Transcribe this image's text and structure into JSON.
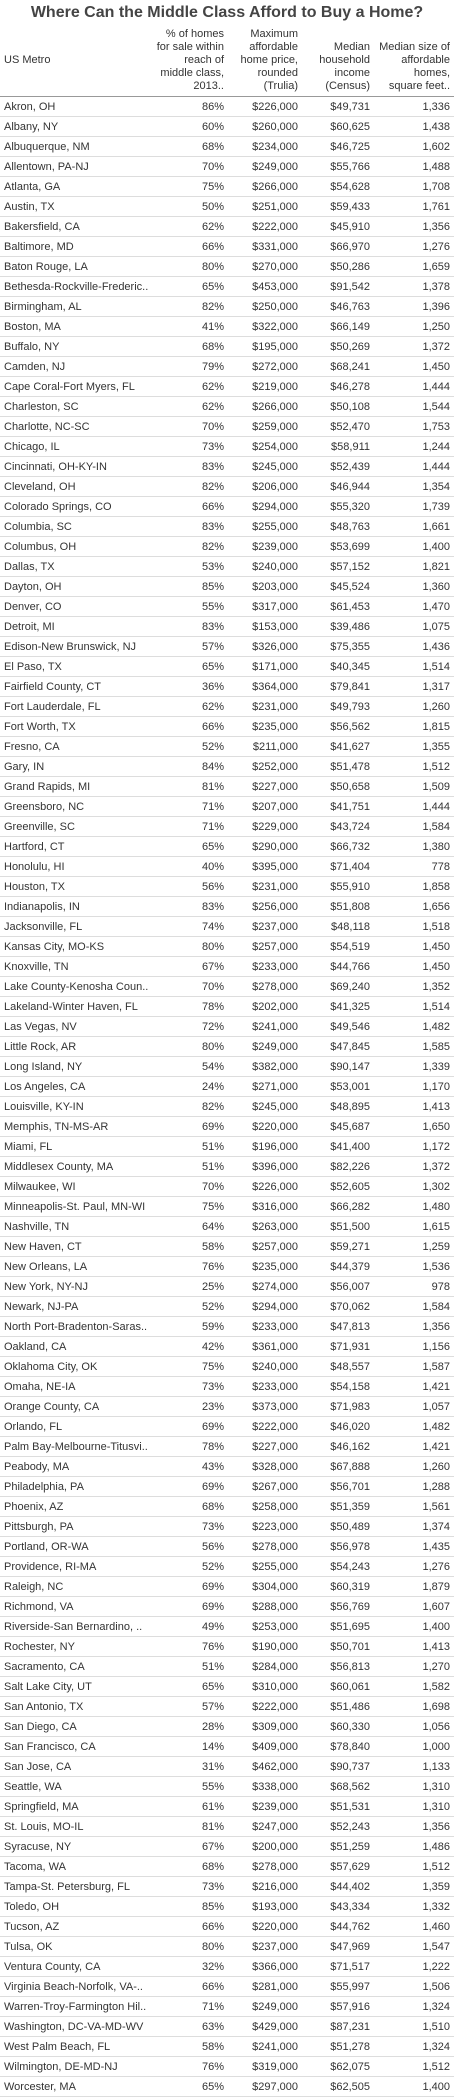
{
  "header": {
    "title": "Where Can the Middle Class Afford to Buy a Home?"
  },
  "table": {
    "columns": [
      "US Metro",
      "% of homes for sale within reach of middle class, 2013..",
      "Maximum affordable home price, rounded (Trulia)",
      "Median household income (Census)",
      "Median size of affordable homes, square feet.."
    ],
    "rows": [
      [
        "Akron, OH",
        "86%",
        "$226,000",
        "$49,731",
        "1,336"
      ],
      [
        "Albany, NY",
        "60%",
        "$260,000",
        "$60,625",
        "1,438"
      ],
      [
        "Albuquerque, NM",
        "68%",
        "$234,000",
        "$46,725",
        "1,602"
      ],
      [
        "Allentown, PA-NJ",
        "70%",
        "$249,000",
        "$55,766",
        "1,488"
      ],
      [
        "Atlanta, GA",
        "75%",
        "$266,000",
        "$54,628",
        "1,708"
      ],
      [
        "Austin, TX",
        "50%",
        "$251,000",
        "$59,433",
        "1,761"
      ],
      [
        "Bakersfield, CA",
        "62%",
        "$222,000",
        "$45,910",
        "1,356"
      ],
      [
        "Baltimore, MD",
        "66%",
        "$331,000",
        "$66,970",
        "1,276"
      ],
      [
        "Baton Rouge, LA",
        "80%",
        "$270,000",
        "$50,286",
        "1,659"
      ],
      [
        "Bethesda-Rockville-Frederic..",
        "65%",
        "$453,000",
        "$91,542",
        "1,378"
      ],
      [
        "Birmingham, AL",
        "82%",
        "$250,000",
        "$46,763",
        "1,396"
      ],
      [
        "Boston, MA",
        "41%",
        "$322,000",
        "$66,149",
        "1,250"
      ],
      [
        "Buffalo, NY",
        "68%",
        "$195,000",
        "$50,269",
        "1,372"
      ],
      [
        "Camden, NJ",
        "79%",
        "$272,000",
        "$68,241",
        "1,450"
      ],
      [
        "Cape Coral-Fort Myers, FL",
        "62%",
        "$219,000",
        "$46,278",
        "1,444"
      ],
      [
        "Charleston, SC",
        "62%",
        "$266,000",
        "$50,108",
        "1,544"
      ],
      [
        "Charlotte, NC-SC",
        "70%",
        "$259,000",
        "$52,470",
        "1,753"
      ],
      [
        "Chicago, IL",
        "73%",
        "$254,000",
        "$58,911",
        "1,244"
      ],
      [
        "Cincinnati, OH-KY-IN",
        "83%",
        "$245,000",
        "$52,439",
        "1,444"
      ],
      [
        "Cleveland, OH",
        "82%",
        "$206,000",
        "$46,944",
        "1,354"
      ],
      [
        "Colorado Springs, CO",
        "66%",
        "$294,000",
        "$55,320",
        "1,739"
      ],
      [
        "Columbia, SC",
        "83%",
        "$255,000",
        "$48,763",
        "1,661"
      ],
      [
        "Columbus, OH",
        "82%",
        "$239,000",
        "$53,699",
        "1,400"
      ],
      [
        "Dallas, TX",
        "53%",
        "$240,000",
        "$57,152",
        "1,821"
      ],
      [
        "Dayton, OH",
        "85%",
        "$203,000",
        "$45,524",
        "1,360"
      ],
      [
        "Denver, CO",
        "55%",
        "$317,000",
        "$61,453",
        "1,470"
      ],
      [
        "Detroit, MI",
        "83%",
        "$153,000",
        "$39,486",
        "1,075"
      ],
      [
        "Edison-New Brunswick, NJ",
        "57%",
        "$326,000",
        "$75,355",
        "1,436"
      ],
      [
        "El Paso, TX",
        "65%",
        "$171,000",
        "$40,345",
        "1,514"
      ],
      [
        "Fairfield County, CT",
        "36%",
        "$364,000",
        "$79,841",
        "1,317"
      ],
      [
        "Fort Lauderdale, FL",
        "62%",
        "$231,000",
        "$49,793",
        "1,260"
      ],
      [
        "Fort Worth, TX",
        "66%",
        "$235,000",
        "$56,562",
        "1,815"
      ],
      [
        "Fresno, CA",
        "52%",
        "$211,000",
        "$41,627",
        "1,355"
      ],
      [
        "Gary, IN",
        "84%",
        "$252,000",
        "$51,478",
        "1,512"
      ],
      [
        "Grand Rapids, MI",
        "81%",
        "$227,000",
        "$50,658",
        "1,509"
      ],
      [
        "Greensboro, NC",
        "71%",
        "$207,000",
        "$41,751",
        "1,444"
      ],
      [
        "Greenville, SC",
        "71%",
        "$229,000",
        "$43,724",
        "1,584"
      ],
      [
        "Hartford, CT",
        "65%",
        "$290,000",
        "$66,732",
        "1,380"
      ],
      [
        "Honolulu, HI",
        "40%",
        "$395,000",
        "$71,404",
        "778"
      ],
      [
        "Houston, TX",
        "56%",
        "$231,000",
        "$55,910",
        "1,858"
      ],
      [
        "Indianapolis, IN",
        "83%",
        "$256,000",
        "$51,808",
        "1,656"
      ],
      [
        "Jacksonville, FL",
        "74%",
        "$237,000",
        "$48,118",
        "1,518"
      ],
      [
        "Kansas City, MO-KS",
        "80%",
        "$257,000",
        "$54,519",
        "1,450"
      ],
      [
        "Knoxville, TN",
        "67%",
        "$233,000",
        "$44,766",
        "1,450"
      ],
      [
        "Lake County-Kenosha Coun..",
        "70%",
        "$278,000",
        "$69,240",
        "1,352"
      ],
      [
        "Lakeland-Winter Haven, FL",
        "78%",
        "$202,000",
        "$41,325",
        "1,514"
      ],
      [
        "Las Vegas, NV",
        "72%",
        "$241,000",
        "$49,546",
        "1,482"
      ],
      [
        "Little Rock, AR",
        "80%",
        "$249,000",
        "$47,845",
        "1,585"
      ],
      [
        "Long Island, NY",
        "54%",
        "$382,000",
        "$90,147",
        "1,339"
      ],
      [
        "Los Angeles, CA",
        "24%",
        "$271,000",
        "$53,001",
        "1,170"
      ],
      [
        "Louisville, KY-IN",
        "82%",
        "$245,000",
        "$48,895",
        "1,413"
      ],
      [
        "Memphis, TN-MS-AR",
        "69%",
        "$220,000",
        "$45,687",
        "1,650"
      ],
      [
        "Miami, FL",
        "51%",
        "$196,000",
        "$41,400",
        "1,172"
      ],
      [
        "Middlesex County, MA",
        "51%",
        "$396,000",
        "$82,226",
        "1,372"
      ],
      [
        "Milwaukee, WI",
        "70%",
        "$226,000",
        "$52,605",
        "1,302"
      ],
      [
        "Minneapolis-St. Paul, MN-WI",
        "75%",
        "$316,000",
        "$66,282",
        "1,480"
      ],
      [
        "Nashville, TN",
        "64%",
        "$263,000",
        "$51,500",
        "1,615"
      ],
      [
        "New Haven, CT",
        "58%",
        "$257,000",
        "$59,271",
        "1,259"
      ],
      [
        "New Orleans, LA",
        "76%",
        "$235,000",
        "$44,379",
        "1,536"
      ],
      [
        "New York, NY-NJ",
        "25%",
        "$274,000",
        "$56,007",
        "978"
      ],
      [
        "Newark, NJ-PA",
        "52%",
        "$294,000",
        "$70,062",
        "1,584"
      ],
      [
        "North Port-Bradenton-Saras..",
        "59%",
        "$233,000",
        "$47,813",
        "1,356"
      ],
      [
        "Oakland, CA",
        "42%",
        "$361,000",
        "$71,931",
        "1,156"
      ],
      [
        "Oklahoma City, OK",
        "75%",
        "$240,000",
        "$48,557",
        "1,587"
      ],
      [
        "Omaha, NE-IA",
        "73%",
        "$233,000",
        "$54,158",
        "1,421"
      ],
      [
        "Orange County, CA",
        "23%",
        "$373,000",
        "$71,983",
        "1,057"
      ],
      [
        "Orlando, FL",
        "69%",
        "$222,000",
        "$46,020",
        "1,482"
      ],
      [
        "Palm Bay-Melbourne-Titusvi..",
        "78%",
        "$227,000",
        "$46,162",
        "1,421"
      ],
      [
        "Peabody, MA",
        "43%",
        "$328,000",
        "$67,888",
        "1,260"
      ],
      [
        "Philadelphia, PA",
        "69%",
        "$267,000",
        "$56,701",
        "1,288"
      ],
      [
        "Phoenix, AZ",
        "68%",
        "$258,000",
        "$51,359",
        "1,561"
      ],
      [
        "Pittsburgh, PA",
        "73%",
        "$223,000",
        "$50,489",
        "1,374"
      ],
      [
        "Portland, OR-WA",
        "56%",
        "$278,000",
        "$56,978",
        "1,435"
      ],
      [
        "Providence, RI-MA",
        "52%",
        "$255,000",
        "$54,243",
        "1,276"
      ],
      [
        "Raleigh, NC",
        "69%",
        "$304,000",
        "$60,319",
        "1,879"
      ],
      [
        "Richmond, VA",
        "69%",
        "$288,000",
        "$56,769",
        "1,607"
      ],
      [
        "Riverside-San Bernardino, ..",
        "49%",
        "$253,000",
        "$51,695",
        "1,400"
      ],
      [
        "Rochester, NY",
        "76%",
        "$190,000",
        "$50,701",
        "1,413"
      ],
      [
        "Sacramento, CA",
        "51%",
        "$284,000",
        "$56,813",
        "1,270"
      ],
      [
        "Salt Lake City, UT",
        "65%",
        "$310,000",
        "$60,061",
        "1,582"
      ],
      [
        "San Antonio, TX",
        "57%",
        "$222,000",
        "$51,486",
        "1,698"
      ],
      [
        "San Diego, CA",
        "28%",
        "$309,000",
        "$60,330",
        "1,056"
      ],
      [
        "San Francisco, CA",
        "14%",
        "$409,000",
        "$78,840",
        "1,000"
      ],
      [
        "San Jose, CA",
        "31%",
        "$462,000",
        "$90,737",
        "1,133"
      ],
      [
        "Seattle, WA",
        "55%",
        "$338,000",
        "$68,562",
        "1,310"
      ],
      [
        "Springfield, MA",
        "61%",
        "$239,000",
        "$51,531",
        "1,310"
      ],
      [
        "St. Louis, MO-IL",
        "81%",
        "$247,000",
        "$52,243",
        "1,356"
      ],
      [
        "Syracuse, NY",
        "67%",
        "$200,000",
        "$51,259",
        "1,486"
      ],
      [
        "Tacoma, WA",
        "68%",
        "$278,000",
        "$57,629",
        "1,512"
      ],
      [
        "Tampa-St. Petersburg, FL",
        "73%",
        "$216,000",
        "$44,402",
        "1,359"
      ],
      [
        "Toledo, OH",
        "85%",
        "$193,000",
        "$43,334",
        "1,332"
      ],
      [
        "Tucson, AZ",
        "66%",
        "$220,000",
        "$44,762",
        "1,460"
      ],
      [
        "Tulsa, OK",
        "80%",
        "$237,000",
        "$47,969",
        "1,547"
      ],
      [
        "Ventura County, CA",
        "32%",
        "$366,000",
        "$71,517",
        "1,222"
      ],
      [
        "Virginia Beach-Norfolk, VA-..",
        "66%",
        "$281,000",
        "$55,997",
        "1,506"
      ],
      [
        "Warren-Troy-Farmington Hil..",
        "71%",
        "$249,000",
        "$57,916",
        "1,324"
      ],
      [
        "Washington, DC-VA-MD-WV",
        "63%",
        "$429,000",
        "$87,231",
        "1,510"
      ],
      [
        "West Palm Beach, FL",
        "58%",
        "$241,000",
        "$51,278",
        "1,324"
      ],
      [
        "Wilmington, DE-MD-NJ",
        "76%",
        "$319,000",
        "$62,075",
        "1,512"
      ],
      [
        "Worcester, MA",
        "65%",
        "$297,000",
        "$62,505",
        "1,400"
      ]
    ]
  }
}
